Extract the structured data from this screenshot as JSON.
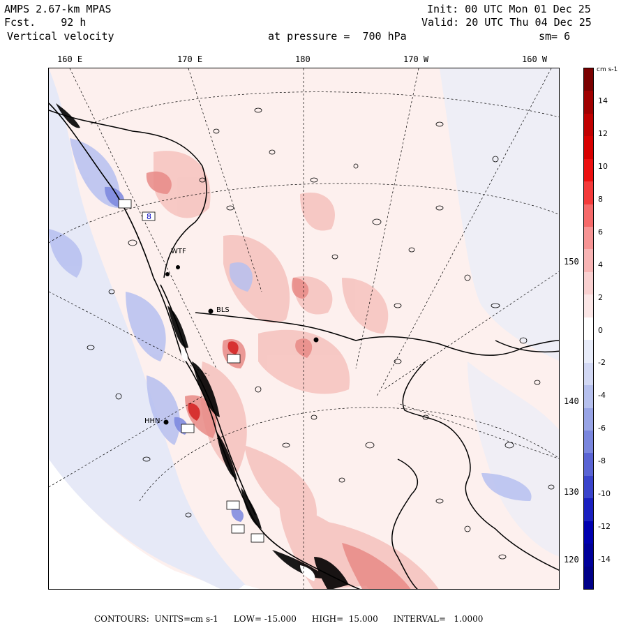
{
  "header": {
    "model": "AMPS 2.67-km MPAS",
    "forecast": "Fcst.    92 h",
    "field": "Vertical velocity",
    "init": "Init: 00 UTC Mon 01 Dec 25",
    "valid": "Valid: 20 UTC Thu 04 Dec 25",
    "pressure": "at pressure =  700 hPa",
    "smoothing": "sm= 6"
  },
  "lon_labels": [
    "160 E",
    "170 E",
    "180",
    "170 W",
    "160 W"
  ],
  "lat_labels": [
    "150 W",
    "140 W",
    "130 W",
    "120 W"
  ],
  "stations": [
    "WTF",
    "BLS",
    "HHN"
  ],
  "colorbar": {
    "unit": "cm s-1",
    "ticks": [
      "14",
      "12",
      "10",
      "8",
      "6",
      "4",
      "2",
      "0",
      "-2",
      "-4",
      "-6",
      "-8",
      "-10",
      "-12",
      "-14"
    ],
    "colors": [
      "#7a0000",
      "#a00000",
      "#c00000",
      "#d80000",
      "#ec1010",
      "#f43a3a",
      "#f66a6a",
      "#f79494",
      "#f8b4b4",
      "#f9d0d0",
      "#fbe6e6",
      "#ffffff",
      "#e8ecfa",
      "#d2d8f4",
      "#b6c0ee",
      "#98a4e6",
      "#7a86de",
      "#5a64d4",
      "#3a44cc",
      "#1a20c0",
      "#0000b0",
      "#00009a",
      "#000088"
    ]
  },
  "footer": {
    "contours": "CONTOURS:  UNITS=cm s-1",
    "low": "LOW= -15.000",
    "high": "HIGH=  15.000",
    "interval": "INTERVAL=   1.0000"
  },
  "colors": {
    "positive_light": "#f6c9c5",
    "positive_mid": "#e88a86",
    "positive_strong": "#d42020",
    "negative_light": "#dfe3f6",
    "negative_mid": "#9aa4e4",
    "negative_strong": "#1a20c0"
  }
}
